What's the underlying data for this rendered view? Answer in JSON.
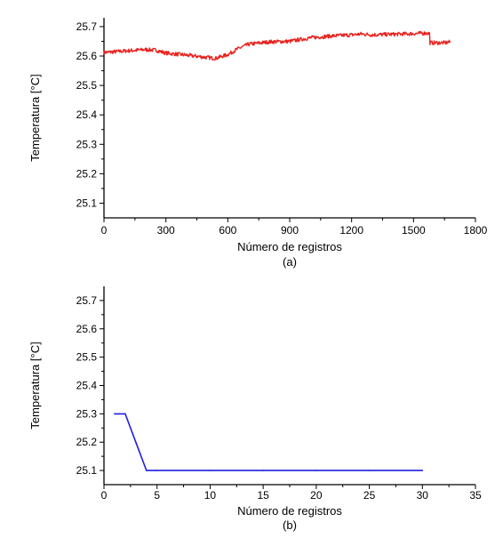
{
  "chart_data": [
    {
      "type": "line",
      "panel_label": "(a)",
      "xlabel": "Número de registros",
      "ylabel": "Temperatura [°C]",
      "xlim": [
        0,
        1800
      ],
      "ylim": [
        25.05,
        25.73
      ],
      "xticks": [
        0,
        300,
        600,
        900,
        1200,
        1500,
        1800
      ],
      "xtick_labels": [
        "0",
        "300",
        "600",
        "900",
        "1200",
        "1500",
        "1800"
      ],
      "yticks": [
        25.1,
        25.2,
        25.3,
        25.4,
        25.5,
        25.6,
        25.7
      ],
      "ytick_labels": [
        "25.1",
        "25.2",
        "25.3",
        "25.4",
        "25.5",
        "25.6",
        "25.7"
      ],
      "grid": false,
      "series": [
        {
          "color": "#e8231f",
          "x": [
            0,
            100,
            200,
            250,
            300,
            400,
            500,
            540,
            600,
            650,
            700,
            800,
            900,
            1000,
            1100,
            1200,
            1250,
            1300,
            1400,
            1500,
            1560,
            1580,
            1590,
            1650,
            1680
          ],
          "y": [
            25.612,
            25.617,
            25.622,
            25.62,
            25.61,
            25.603,
            25.595,
            25.592,
            25.605,
            25.625,
            25.64,
            25.648,
            25.65,
            25.662,
            25.668,
            25.672,
            25.675,
            25.672,
            25.674,
            25.676,
            25.678,
            25.676,
            25.645,
            25.645,
            25.648
          ]
        }
      ]
    },
    {
      "type": "line",
      "panel_label": "(b)",
      "xlabel": "Número de registros",
      "ylabel": "Temperatura [°C]",
      "xlim": [
        0,
        35
      ],
      "ylim": [
        25.05,
        25.75
      ],
      "xticks": [
        0,
        5,
        10,
        15,
        20,
        25,
        30,
        35
      ],
      "xtick_labels": [
        "0",
        "5",
        "10",
        "15",
        "20",
        "25",
        "30",
        "35"
      ],
      "yticks": [
        25.1,
        25.2,
        25.3,
        25.4,
        25.5,
        25.6,
        25.7
      ],
      "ytick_labels": [
        "25.1",
        "25.2",
        "25.3",
        "25.4",
        "25.5",
        "25.6",
        "25.7"
      ],
      "grid": false,
      "series": [
        {
          "color": "#1f1fe0",
          "x": [
            1,
            2,
            3,
            4,
            5,
            10,
            15,
            20,
            25,
            30
          ],
          "y": [
            25.3,
            25.3,
            25.2,
            25.1,
            25.1,
            25.1,
            25.1,
            25.1,
            25.1,
            25.1
          ]
        }
      ]
    }
  ]
}
